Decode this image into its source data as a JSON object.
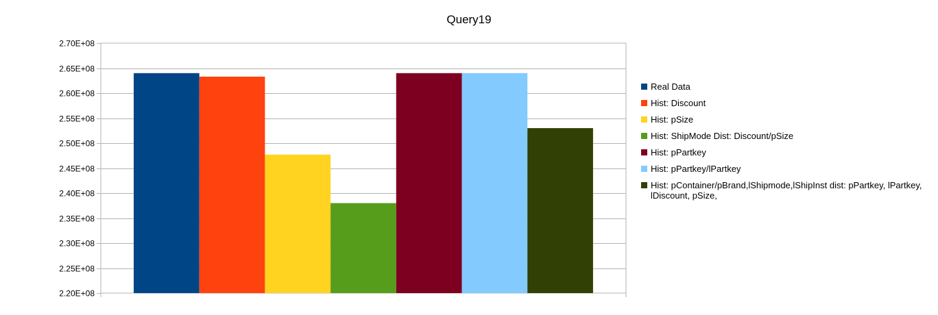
{
  "chart_data": {
    "type": "bar",
    "title": "Query19",
    "xlabel": "",
    "ylabel": "",
    "categories": [
      ""
    ],
    "ylim": [
      220000000,
      270000000
    ],
    "ytick_step": 5000000,
    "ytick_labels": [
      "2.20E+08",
      "2.25E+08",
      "2.30E+08",
      "2.35E+08",
      "2.40E+08",
      "2.45E+08",
      "2.50E+08",
      "2.55E+08",
      "2.60E+08",
      "2.65E+08",
      "2.70E+08"
    ],
    "grid": true,
    "legend_position": "right",
    "series": [
      {
        "name": "Real Data",
        "values": [
          264000000
        ],
        "color": "#004586"
      },
      {
        "name": "Hist: Discount",
        "values": [
          263300000
        ],
        "color": "#ff420e"
      },
      {
        "name": "Hist: pSize",
        "values": [
          247700000
        ],
        "color": "#ffd320"
      },
      {
        "name": "Hist: ShipMode  Dist: Discount/pSize",
        "values": [
          238000000
        ],
        "color": "#579d1c"
      },
      {
        "name": "Hist: pPartkey",
        "values": [
          264000000
        ],
        "color": "#7e0021"
      },
      {
        "name": "Hist: pPartkey/lPartkey",
        "values": [
          264000000
        ],
        "color": "#83caff"
      },
      {
        "name": "Hist: pContainer/pBrand,lShipmode,lShipInst dist: pPartkey, lPartkey, lDiscount, pSize,",
        "values": [
          253000000
        ],
        "color": "#314004"
      }
    ]
  }
}
